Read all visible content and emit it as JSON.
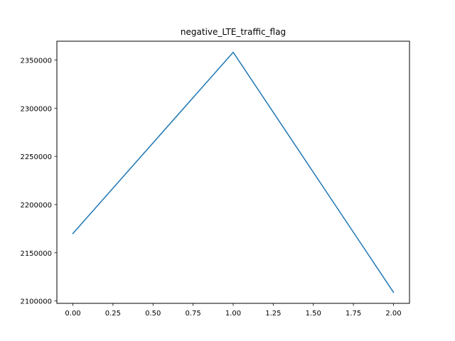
{
  "chart_data": {
    "type": "line",
    "title": "negative_LTE_traffic_flag",
    "xlabel": "",
    "ylabel": "",
    "x": [
      0,
      1,
      2
    ],
    "series": [
      {
        "values": [
          2170000,
          2358000,
          2109000
        ],
        "color": "#1f77b4"
      }
    ],
    "xlim": [
      -0.1,
      2.1
    ],
    "ylim": [
      2097500,
      2369500
    ],
    "xticks": [
      0.0,
      0.25,
      0.5,
      0.75,
      1.0,
      1.25,
      1.5,
      1.75,
      2.0
    ],
    "xtick_labels": [
      "0.00",
      "0.25",
      "0.50",
      "0.75",
      "1.00",
      "1.25",
      "1.50",
      "1.75",
      "2.00"
    ],
    "yticks": [
      2100000,
      2150000,
      2200000,
      2250000,
      2300000,
      2350000
    ],
    "ytick_labels": [
      "2100000",
      "2150000",
      "2200000",
      "2250000",
      "2300000",
      "2350000"
    ],
    "grid": false,
    "legend": "none"
  }
}
